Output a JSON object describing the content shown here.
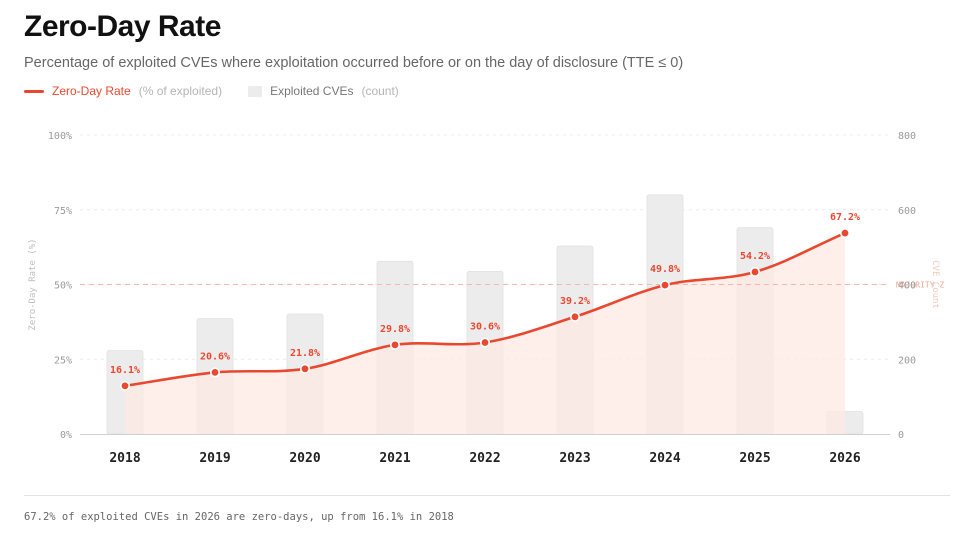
{
  "header": {
    "title": "Zero-Day Rate",
    "subtitle": "Percentage of exploited CVEs where exploitation occurred before or on the day of disclosure (TTE ≤ 0)"
  },
  "legend": {
    "rate_label": "Zero-Day Rate",
    "rate_unit": "(% of exploited)",
    "count_label": "Exploited CVEs",
    "count_unit": "(count)"
  },
  "footnote": "67.2% of exploited CVEs in 2026 are zero-days, up from 16.1% in 2018",
  "colors": {
    "line": "#e8482f",
    "bar": "#ececec",
    "area": "#fde9e4",
    "reference": "#f3b9ab"
  },
  "chart_data": {
    "type": "bar",
    "categories": [
      "2018",
      "2019",
      "2020",
      "2021",
      "2022",
      "2023",
      "2024",
      "2025",
      "2026"
    ],
    "series": [
      {
        "name": "Zero-Day Rate",
        "type": "line",
        "axis": "left",
        "values": [
          16.1,
          20.6,
          21.8,
          29.8,
          30.6,
          39.2,
          49.8,
          54.2,
          67.2
        ],
        "labels": [
          "16.1%",
          "20.6%",
          "21.8%",
          "29.8%",
          "30.6%",
          "39.2%",
          "49.8%",
          "54.2%",
          "67.2%"
        ]
      },
      {
        "name": "Exploited CVEs",
        "type": "bar",
        "axis": "right",
        "values": [
          223,
          309,
          321,
          462,
          435,
          503,
          640,
          552,
          60
        ]
      }
    ],
    "ylabel": "Zero-Day Rate (%)",
    "y2label": "CVE Count",
    "ylim": [
      0,
      100
    ],
    "y2lim": [
      0,
      800
    ],
    "yticks": [
      "0%",
      "25%",
      "50%",
      "75%",
      "100%"
    ],
    "y2ticks": [
      "0",
      "200",
      "400",
      "600",
      "800"
    ],
    "reference_line": {
      "value": 50,
      "label": "MAJORITY Z"
    },
    "grid": true
  }
}
